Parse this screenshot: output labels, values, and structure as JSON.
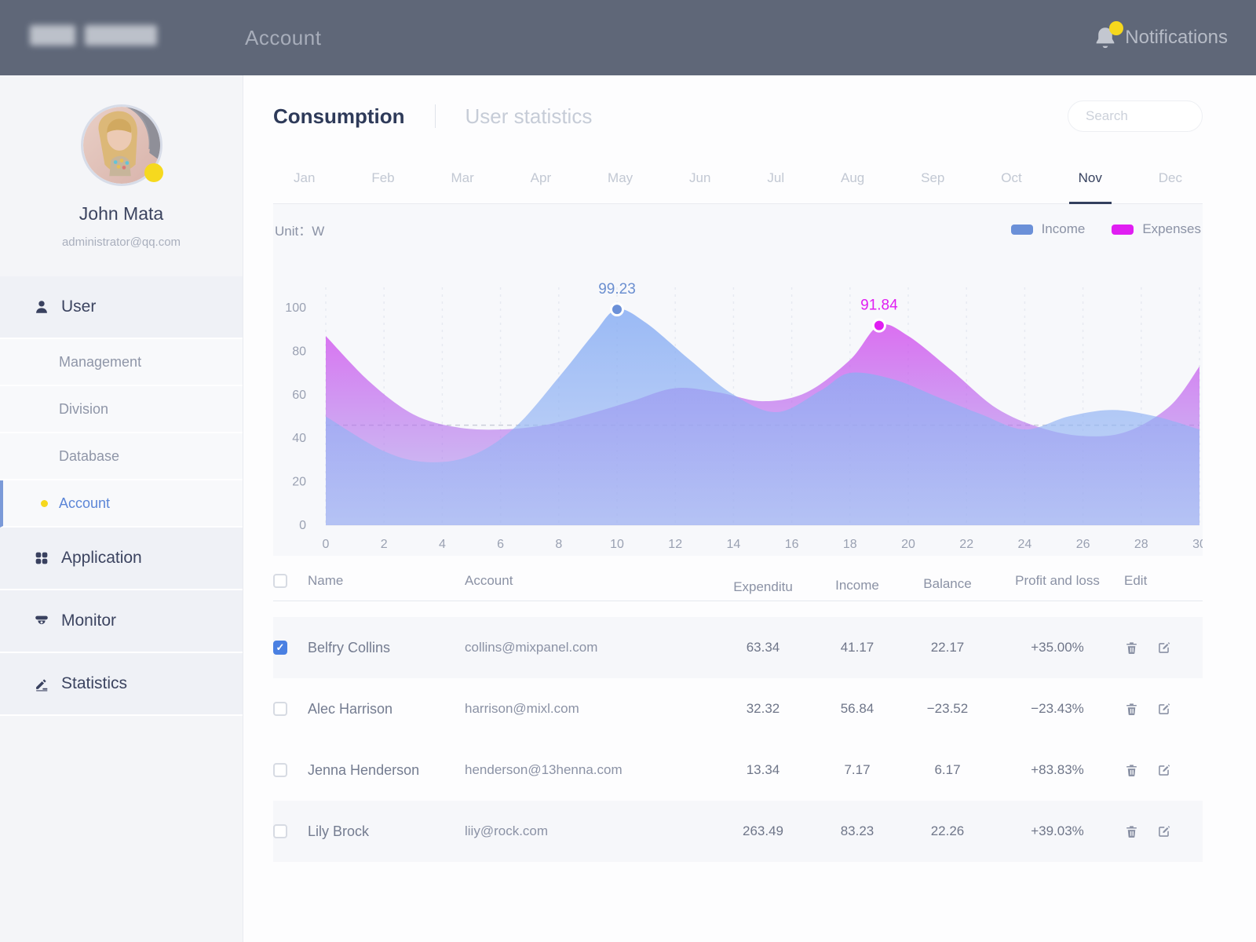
{
  "header": {
    "title": "Account",
    "notifications_label": "Notifications",
    "badge_color": "#f6d81d"
  },
  "sidebar": {
    "user": {
      "name": "John Mata",
      "email": "administrator@qq.com"
    },
    "sections": [
      {
        "label": "User",
        "icon": "user-icon",
        "expanded": true,
        "children": [
          {
            "label": "Management",
            "active": false
          },
          {
            "label": "Division",
            "active": false
          },
          {
            "label": "Database",
            "active": false
          },
          {
            "label": "Account",
            "active": true
          }
        ]
      },
      {
        "label": "Application",
        "icon": "app-grid-icon"
      },
      {
        "label": "Monitor",
        "icon": "monitor-camera-icon"
      },
      {
        "label": "Statistics",
        "icon": "statistics-pen-icon"
      }
    ]
  },
  "tabs": {
    "active": "Consumption",
    "inactive": "User statistics"
  },
  "search": {
    "placeholder": "Search"
  },
  "months": {
    "items": [
      "Jan",
      "Feb",
      "Mar",
      "Apr",
      "May",
      "Jun",
      "Jul",
      "Aug",
      "Sep",
      "Oct",
      "Nov",
      "Dec"
    ],
    "active": "Nov"
  },
  "chart_data": {
    "type": "area",
    "unit_label": "Unit：",
    "unit_value": "W",
    "xlim": [
      0,
      30
    ],
    "ylim": [
      0,
      100
    ],
    "x_ticks": [
      0,
      2,
      4,
      6,
      8,
      10,
      12,
      14,
      16,
      18,
      20,
      22,
      24,
      26,
      28,
      30
    ],
    "y_ticks": [
      0,
      20,
      40,
      60,
      80,
      100
    ],
    "grid": "vertical-dashed",
    "reference_line_y": 46,
    "legend_position": "top-right",
    "series": [
      {
        "name": "Expenses",
        "color": "#e01ef2",
        "label_color": "#e01ef2",
        "gradient_top": "rgba(211,72,238,0.78)",
        "gradient_bottom": "rgba(148,140,234,0.42)",
        "points": [
          [
            0,
            87
          ],
          [
            1.5,
            66
          ],
          [
            3,
            51
          ],
          [
            4.5,
            45
          ],
          [
            6,
            44
          ],
          [
            7.5,
            46
          ],
          [
            9,
            51
          ],
          [
            10.5,
            57
          ],
          [
            12,
            63
          ],
          [
            13.5,
            61
          ],
          [
            15,
            57
          ],
          [
            16.5,
            61
          ],
          [
            18,
            76
          ],
          [
            19,
            91.84
          ],
          [
            20,
            87
          ],
          [
            21.5,
            71
          ],
          [
            23,
            54
          ],
          [
            24.5,
            45
          ],
          [
            26,
            41
          ],
          [
            27.5,
            43
          ],
          [
            29,
            55
          ],
          [
            30,
            73
          ]
        ],
        "peak": {
          "x": 19,
          "value": 91.84,
          "label": "91.84"
        }
      },
      {
        "name": "Income",
        "color": "#6b90d8",
        "label_color": "#6b8fd0",
        "gradient_top": "rgba(128,168,243,0.78)",
        "gradient_bottom": "rgba(160,188,244,0.55)",
        "points": [
          [
            0,
            50
          ],
          [
            2,
            34
          ],
          [
            3.5,
            29
          ],
          [
            5,
            32
          ],
          [
            6.5,
            45
          ],
          [
            8,
            68
          ],
          [
            9.2,
            88
          ],
          [
            10,
            99.23
          ],
          [
            11,
            93
          ],
          [
            12.5,
            76
          ],
          [
            14,
            60
          ],
          [
            15.5,
            52
          ],
          [
            17,
            62
          ],
          [
            18,
            70
          ],
          [
            19.5,
            67
          ],
          [
            21,
            59
          ],
          [
            22.5,
            51
          ],
          [
            24,
            44
          ],
          [
            25.5,
            50
          ],
          [
            27,
            53
          ],
          [
            28.5,
            50
          ],
          [
            30,
            44
          ]
        ],
        "peak": {
          "x": 10,
          "value": 99.23,
          "label": "99.23"
        }
      }
    ]
  },
  "table": {
    "headers": [
      "Name",
      "Account",
      "Expenditu",
      "Income",
      "Balance",
      "Profit and loss",
      "Edit"
    ],
    "rows": [
      {
        "checked": true,
        "name": "Belfry Collins",
        "account": "collins@mixpanel.com",
        "expenditure": "63.34",
        "income": "41.17",
        "balance": "22.17",
        "profit_loss": "+35.00%"
      },
      {
        "checked": false,
        "name": "Alec Harrison",
        "account": "harrison@mixl.com",
        "expenditure": "32.32",
        "income": "56.84",
        "balance": "−23.52",
        "profit_loss": "−23.43%"
      },
      {
        "checked": false,
        "name": "Jenna Henderson",
        "account": "henderson@13henna.com",
        "expenditure": "13.34",
        "income": "7.17",
        "balance": "6.17",
        "profit_loss": "+83.83%"
      },
      {
        "checked": false,
        "name": "Lily Brock",
        "account": "liiy@rock.com",
        "expenditure": "263.49",
        "income": "83.23",
        "balance": "22.26",
        "profit_loss": "+39.03%"
      }
    ]
  }
}
